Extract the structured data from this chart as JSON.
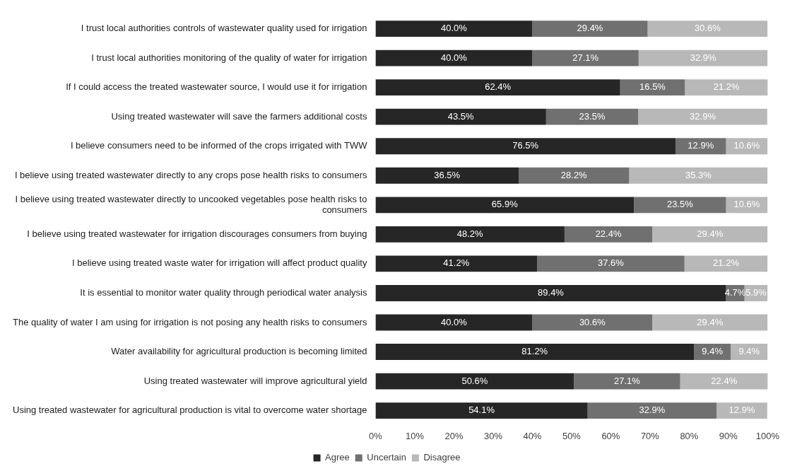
{
  "chart_data": {
    "type": "bar",
    "orientation": "horizontal",
    "stacked": true,
    "categories": [
      "I trust local authorities controls of wastewater quality used for irrigation",
      "I trust local authorities monitoring of the quality of water for irrigation",
      "If I could access the treated wastewater source, I would use it for irrigation",
      "Using treated wastewater will save the farmers additional costs",
      "I believe consumers need to be informed of the crops irrigated with TWW",
      "I believe using treated wastewater directly to any crops pose health risks to consumers",
      "I believe using treated wastewater directly to uncooked vegetables pose health risks to consumers",
      "I believe using treated wastewater for irrigation discourages consumers from buying",
      "I believe using treated waste water for irrigation will affect product quality",
      "It is essential to monitor water quality through periodical water analysis",
      "The quality of water I am using for irrigation is not posing any health risks to consumers",
      "Water availability for agricultural production is becoming limited",
      "Using treated wastewater will improve agricultural yield",
      "Using treated wastewater for agricultural production is vital to overcome water shortage"
    ],
    "series": [
      {
        "name": "Agree",
        "color": "#262626",
        "values": [
          40.0,
          40.0,
          62.4,
          43.5,
          76.5,
          36.5,
          65.9,
          48.2,
          41.2,
          89.4,
          40.0,
          81.2,
          50.6,
          54.1
        ],
        "value_labels": [
          "40.0%",
          "40.0%",
          "62.4%",
          "43.5%",
          "76.5%",
          "36.5%",
          "65.9%",
          "48.2%",
          "41.2%",
          "89.4%",
          "40.0%",
          "81.2%",
          "50.6%",
          "54.1%"
        ]
      },
      {
        "name": "Uncertain",
        "color": "#707070",
        "values": [
          29.4,
          27.1,
          16.5,
          23.5,
          12.9,
          28.2,
          23.5,
          22.4,
          37.6,
          4.7,
          30.6,
          9.4,
          27.1,
          32.9
        ],
        "value_labels": [
          "29.4%",
          "27.1%",
          "16.5%",
          "23.5%",
          "12.9%",
          "28.2%",
          "23.5%",
          "22.4%",
          "37.6%",
          "4.7%",
          "30.6%",
          "9.4%",
          "27.1%",
          "32.9%"
        ]
      },
      {
        "name": "Disagree",
        "color": "#b8b8b8",
        "values": [
          30.6,
          32.9,
          21.2,
          32.9,
          10.6,
          35.3,
          10.6,
          29.4,
          21.2,
          5.9,
          29.4,
          9.4,
          22.4,
          12.9
        ],
        "value_labels": [
          "30.6%",
          "32.9%",
          "21.2%",
          "32.9%",
          "10.6%",
          "35.3%",
          "10.6%",
          "29.4%",
          "21.2%",
          "5.9%",
          "29.4%",
          "9.4%",
          "22.4%",
          "12.9%"
        ]
      }
    ],
    "xlim": [
      0,
      100
    ],
    "xticks": [
      {
        "value": 0,
        "label": "0%"
      },
      {
        "value": 10,
        "label": "10%"
      },
      {
        "value": 20,
        "label": "20%"
      },
      {
        "value": 30,
        "label": "30%"
      },
      {
        "value": 40,
        "label": "40%"
      },
      {
        "value": 50,
        "label": "50%"
      },
      {
        "value": 60,
        "label": "60%"
      },
      {
        "value": 70,
        "label": "70%"
      },
      {
        "value": 80,
        "label": "80%"
      },
      {
        "value": 90,
        "label": "90%"
      },
      {
        "value": 100,
        "label": "100%"
      }
    ],
    "legend": "bottom",
    "grid": false
  }
}
